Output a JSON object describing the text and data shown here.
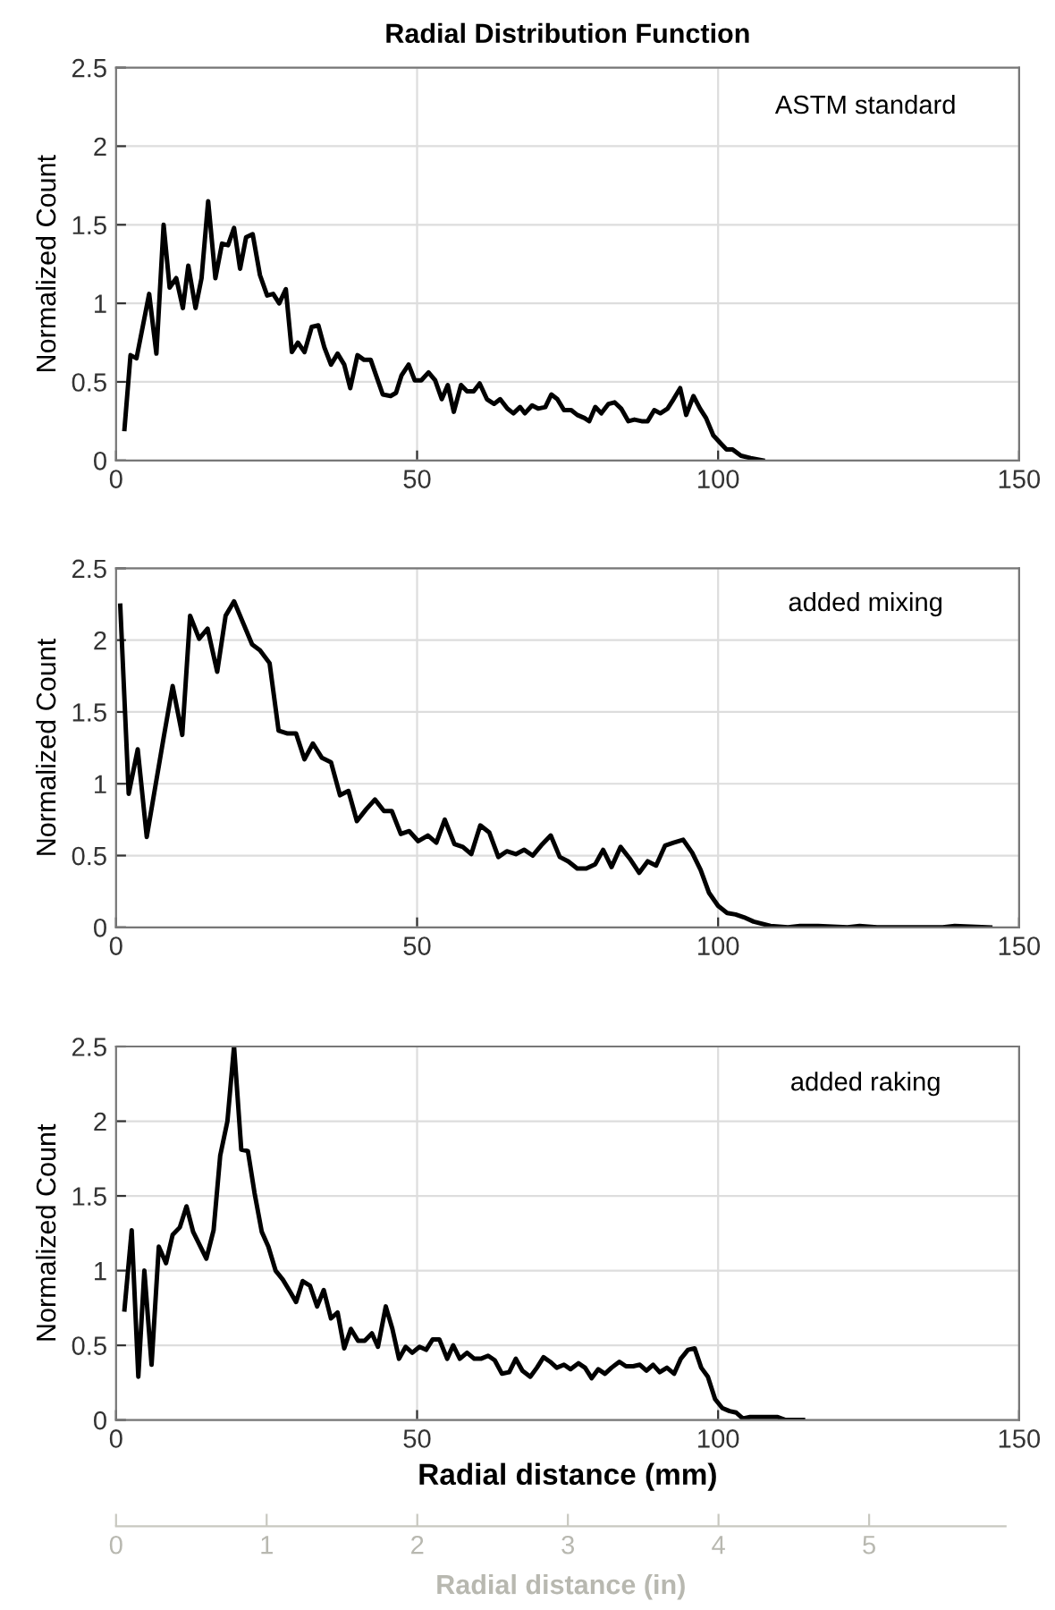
{
  "chart_data": [
    {
      "type": "line",
      "title": "Radial Distribution Function",
      "ylabel": "Normalized Count",
      "annotations": [
        "ASTM standard"
      ],
      "xlim": [
        0,
        150
      ],
      "xticks": [
        0,
        50,
        100,
        150
      ],
      "ylim": [
        0,
        2.5
      ],
      "yticks": [
        0,
        0.5,
        1,
        1.5,
        2,
        2.5
      ],
      "grid": true,
      "line_style": "solid",
      "marker": "none",
      "series": [
        {
          "color": "#000000",
          "x": [
            1.4,
            2.4,
            3.4,
            5.5,
            6.7,
            7.9,
            8.9,
            10,
            11.1,
            12,
            13.2,
            14.2,
            15.3,
            16.5,
            17.6,
            18.6,
            19.6,
            20.6,
            21.6,
            22.7,
            23.9,
            25.1,
            26.1,
            27.1,
            28.2,
            29.2,
            30.2,
            31.3,
            32.5,
            33.6,
            34.6,
            35.7,
            36.8,
            37.9,
            38.9,
            40.1,
            41.2,
            42.3,
            43.2,
            44.3,
            45.6,
            46.5,
            47.4,
            48.6,
            49.6,
            50.7,
            51.9,
            53,
            54.1,
            55.1,
            56.1,
            57.3,
            58.3,
            59.4,
            60.4,
            61.6,
            62.8,
            63.8,
            65,
            66,
            67.1,
            67.9,
            69.1,
            70.1,
            71.3,
            72.3,
            73.3,
            74.4,
            75.6,
            76.6,
            77.8,
            78.6,
            79.6,
            80.6,
            81.8,
            82.8,
            83.9,
            85.1,
            86.1,
            87.3,
            88.3,
            89.4,
            90.4,
            91.6,
            92.6,
            93.7,
            94.7,
            95.9,
            97,
            98,
            99.2,
            100.4,
            101.4,
            102.4,
            103.8,
            105.4,
            107.4
          ],
          "values": [
            0.2,
            0.67,
            0.65,
            1.06,
            0.68,
            1.5,
            1.1,
            1.16,
            0.97,
            1.24,
            0.97,
            1.16,
            1.65,
            1.16,
            1.38,
            1.37,
            1.48,
            1.22,
            1.42,
            1.44,
            1.18,
            1.05,
            1.06,
            1.0,
            1.09,
            0.69,
            0.75,
            0.69,
            0.85,
            0.86,
            0.72,
            0.61,
            0.68,
            0.61,
            0.46,
            0.67,
            0.64,
            0.64,
            0.54,
            0.42,
            0.41,
            0.43,
            0.54,
            0.61,
            0.51,
            0.51,
            0.56,
            0.51,
            0.39,
            0.48,
            0.31,
            0.48,
            0.44,
            0.44,
            0.49,
            0.39,
            0.36,
            0.39,
            0.33,
            0.3,
            0.34,
            0.3,
            0.35,
            0.33,
            0.34,
            0.42,
            0.39,
            0.32,
            0.32,
            0.29,
            0.27,
            0.25,
            0.34,
            0.3,
            0.36,
            0.37,
            0.33,
            0.25,
            0.26,
            0.25,
            0.25,
            0.32,
            0.3,
            0.33,
            0.39,
            0.46,
            0.29,
            0.41,
            0.33,
            0.27,
            0.16,
            0.11,
            0.07,
            0.07,
            0.03,
            0.015,
            0
          ]
        }
      ]
    },
    {
      "type": "line",
      "ylabel": "Normalized Count",
      "annotations": [
        "added mixing"
      ],
      "xlim": [
        0,
        150
      ],
      "xticks": [
        0,
        50,
        100,
        150
      ],
      "ylim": [
        0,
        2.5
      ],
      "yticks": [
        0,
        0.5,
        1,
        1.5,
        2,
        2.5
      ],
      "grid": true,
      "line_style": "solid",
      "marker": "none",
      "series": [
        {
          "color": "#000000",
          "x": [
            0.7,
            2.1,
            3.6,
            5.1,
            7.9,
            9.4,
            11,
            12.3,
            13.8,
            15.2,
            16.8,
            18.2,
            19.6,
            21.2,
            22.6,
            23.9,
            25.5,
            27,
            28.5,
            29.9,
            31.3,
            32.7,
            34.2,
            35.7,
            37.2,
            38.6,
            40,
            41.5,
            43,
            44.5,
            45.8,
            47.3,
            48.7,
            50.2,
            51.8,
            53.2,
            54.6,
            56.2,
            57.6,
            59,
            60.5,
            62,
            63.5,
            64.9,
            66.4,
            67.8,
            69.2,
            70.6,
            72.2,
            73.7,
            75.1,
            76.6,
            78.1,
            79.6,
            80.9,
            82.3,
            83.8,
            85.3,
            86.9,
            88.3,
            89.7,
            91.2,
            92.6,
            94.2,
            95.7,
            97.1,
            98.5,
            100,
            101.5,
            102.9,
            104.3,
            105.9,
            108.7,
            111.6,
            113.6,
            116.6,
            121.5,
            123.5,
            126.4,
            133.3,
            137.3,
            139.3,
            145.2
          ],
          "values": [
            2.24,
            0.93,
            1.24,
            0.63,
            1.32,
            1.68,
            1.34,
            2.17,
            2.01,
            2.08,
            1.78,
            2.17,
            2.27,
            2.11,
            1.97,
            1.93,
            1.84,
            1.37,
            1.35,
            1.35,
            1.17,
            1.28,
            1.18,
            1.15,
            0.92,
            0.95,
            0.74,
            0.82,
            0.89,
            0.81,
            0.81,
            0.65,
            0.67,
            0.6,
            0.64,
            0.59,
            0.75,
            0.58,
            0.56,
            0.51,
            0.71,
            0.66,
            0.49,
            0.53,
            0.51,
            0.54,
            0.5,
            0.57,
            0.64,
            0.49,
            0.46,
            0.41,
            0.41,
            0.44,
            0.54,
            0.42,
            0.56,
            0.48,
            0.38,
            0.46,
            0.43,
            0.57,
            0.59,
            0.61,
            0.52,
            0.4,
            0.24,
            0.15,
            0.1,
            0.09,
            0.07,
            0.04,
            0.01,
            0,
            0.01,
            0.01,
            0,
            0.01,
            0,
            0,
            0,
            0.01,
            0
          ]
        }
      ]
    },
    {
      "type": "line",
      "ylabel": "Normalized Count",
      "xlabel": "Radial distance (mm)",
      "annotations": [
        "added raking"
      ],
      "xlim": [
        0,
        150
      ],
      "xticks": [
        0,
        50,
        100,
        150
      ],
      "ylim": [
        0,
        2.5
      ],
      "yticks": [
        0,
        0.5,
        1,
        1.5,
        2,
        2.5
      ],
      "x2lim": [
        0,
        5.906
      ],
      "x2ticks": [
        0,
        1,
        2,
        3,
        4,
        5
      ],
      "x2label": "Radial distance (in)",
      "grid": true,
      "line_style": "solid",
      "marker": "none",
      "series": [
        {
          "color": "#000000",
          "x": [
            1.4,
            2.6,
            3.7,
            4.7,
            5.9,
            7.1,
            8.3,
            9.4,
            10.6,
            11.7,
            12.8,
            13.9,
            15,
            16.2,
            17.3,
            18.5,
            19.6,
            20.8,
            21.9,
            23,
            24.2,
            25.3,
            26.5,
            27.7,
            28.9,
            29.9,
            31,
            32.2,
            33.4,
            34.5,
            35.7,
            36.8,
            37.9,
            39,
            40.2,
            41.3,
            42.5,
            43.5,
            44.8,
            45.9,
            47,
            48.1,
            49.2,
            50.4,
            51.5,
            52.6,
            53.7,
            55,
            56,
            57.1,
            58.3,
            59.5,
            60.6,
            61.8,
            62.9,
            64.1,
            65.3,
            66.4,
            67.5,
            68.8,
            69.9,
            71,
            72.1,
            73.2,
            74.4,
            75.5,
            76.8,
            77.9,
            79,
            80.1,
            81.2,
            82.3,
            83.6,
            84.7,
            85.9,
            87,
            88.1,
            89.2,
            90.3,
            91.5,
            92.7,
            93.8,
            95,
            96.1,
            97.2,
            98.3,
            99.5,
            100.7,
            101.9,
            103,
            104.1,
            105.3,
            106.4,
            107.5,
            108.7,
            109.9,
            111.2,
            114.1
          ],
          "values": [
            0.74,
            1.27,
            0.29,
            1.0,
            0.37,
            1.16,
            1.05,
            1.24,
            1.29,
            1.43,
            1.26,
            1.17,
            1.08,
            1.27,
            1.77,
            2.0,
            2.5,
            1.81,
            1.8,
            1.52,
            1.26,
            1.16,
            1.0,
            0.94,
            0.86,
            0.79,
            0.93,
            0.9,
            0.76,
            0.87,
            0.68,
            0.72,
            0.48,
            0.61,
            0.53,
            0.53,
            0.58,
            0.49,
            0.76,
            0.61,
            0.41,
            0.49,
            0.45,
            0.49,
            0.47,
            0.54,
            0.54,
            0.41,
            0.5,
            0.41,
            0.45,
            0.41,
            0.41,
            0.43,
            0.4,
            0.31,
            0.32,
            0.41,
            0.33,
            0.29,
            0.35,
            0.42,
            0.39,
            0.35,
            0.37,
            0.34,
            0.38,
            0.35,
            0.28,
            0.34,
            0.31,
            0.35,
            0.39,
            0.36,
            0.36,
            0.37,
            0.33,
            0.37,
            0.32,
            0.35,
            0.31,
            0.41,
            0.47,
            0.48,
            0.35,
            0.29,
            0.14,
            0.08,
            0.06,
            0.05,
            0.01,
            0.02,
            0.02,
            0.02,
            0.02,
            0.02,
            0,
            0
          ]
        }
      ]
    }
  ]
}
